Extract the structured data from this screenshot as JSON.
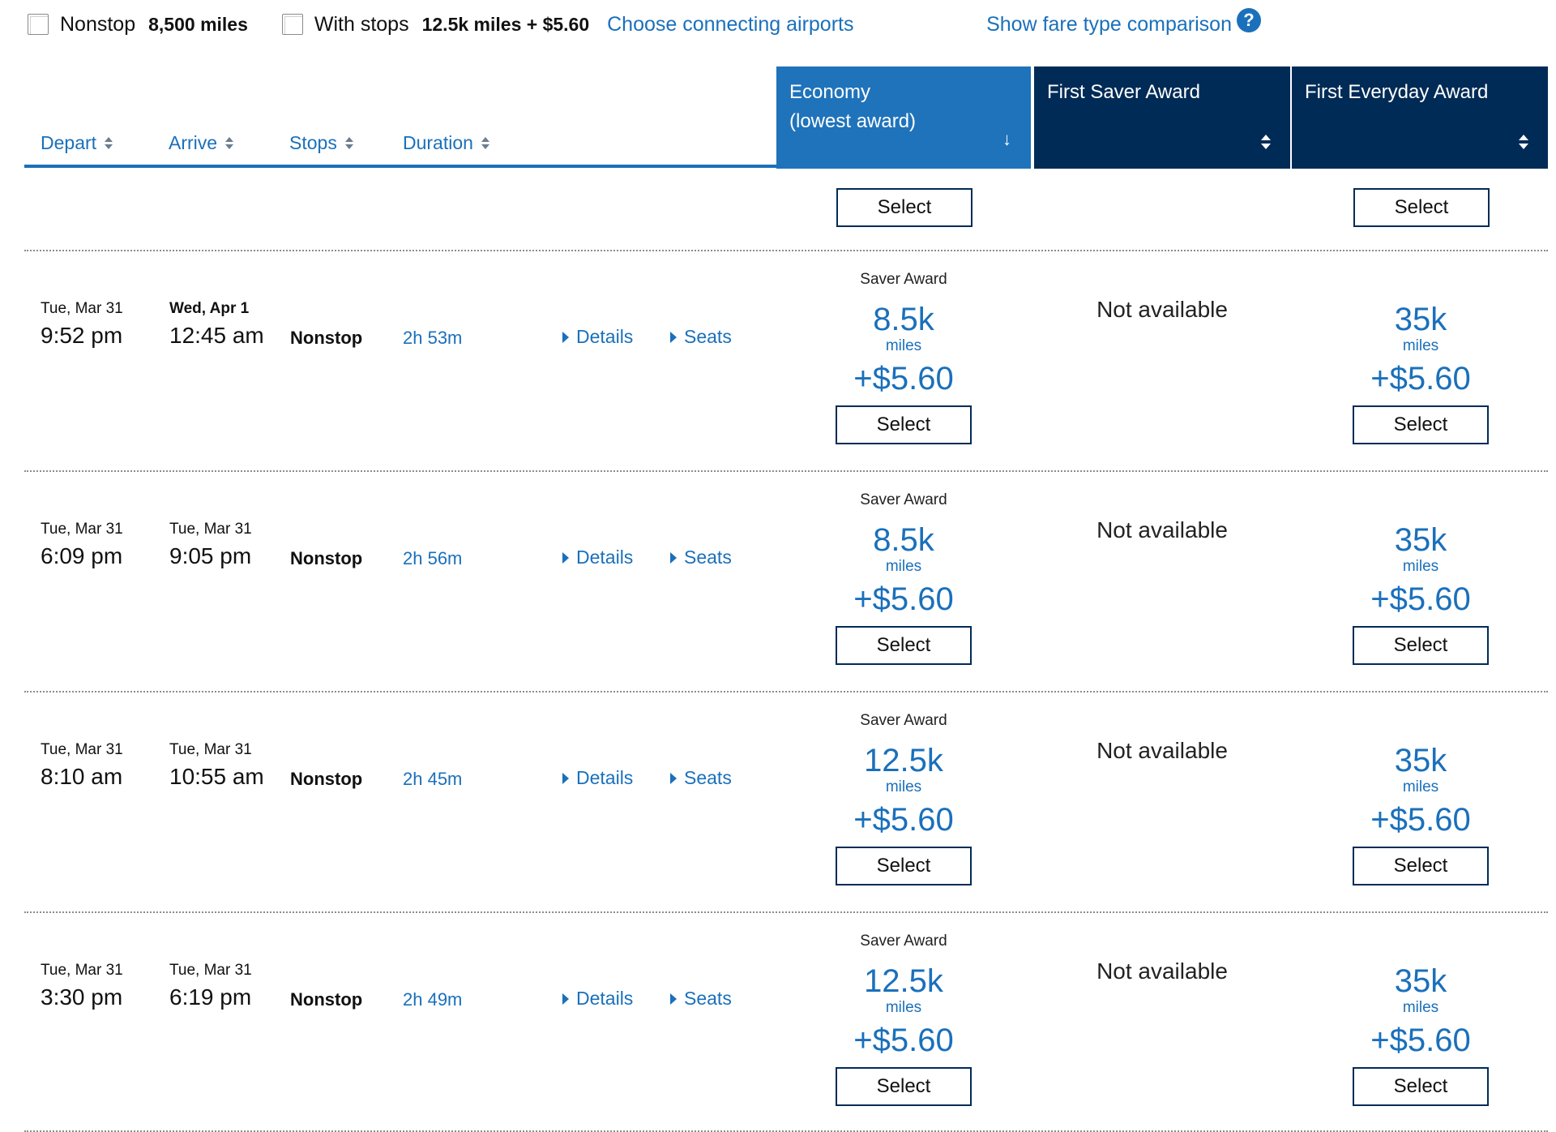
{
  "filters": {
    "nonstop_label": "Nonstop",
    "nonstop_price": "8,500 miles",
    "stops_label": "With stops",
    "stops_price": "12.5k miles + $5.60",
    "connecting_link": "Choose connecting airports",
    "compare_link": "Show fare type comparison",
    "help_glyph": "?"
  },
  "columns": {
    "depart": "Depart",
    "arrive": "Arrive",
    "stops": "Stops",
    "duration": "Duration"
  },
  "fare_columns": {
    "economy_line1": "Economy",
    "economy_line2": "(lowest award)",
    "economy_sort_glyph": "↓",
    "first_saver": "First Saver Award",
    "first_everyday": "First Everyday Award"
  },
  "select_label": "Select",
  "flights": [
    {
      "depart_date": "Tue, Mar 31",
      "depart_time": "9:52 pm",
      "arrive_date": "Wed, Apr 1",
      "arrive_time": "12:45 am",
      "stops": "Nonstop",
      "duration": "2h 53m",
      "details": "Details",
      "seats": "Seats",
      "economy": {
        "type": "Saver Award",
        "miles": "8.5k",
        "unit": "miles",
        "fee": "+$5.60"
      },
      "first_saver": "Not available",
      "first_everyday": {
        "miles": "35k",
        "unit": "miles",
        "fee": "+$5.60"
      }
    },
    {
      "depart_date": "Tue, Mar 31",
      "depart_time": "6:09 pm",
      "arrive_date": "Tue, Mar 31",
      "arrive_time": "9:05 pm",
      "stops": "Nonstop",
      "duration": "2h 56m",
      "details": "Details",
      "seats": "Seats",
      "economy": {
        "type": "Saver Award",
        "miles": "8.5k",
        "unit": "miles",
        "fee": "+$5.60"
      },
      "first_saver": "Not available",
      "first_everyday": {
        "miles": "35k",
        "unit": "miles",
        "fee": "+$5.60"
      }
    },
    {
      "depart_date": "Tue, Mar 31",
      "depart_time": "8:10 am",
      "arrive_date": "Tue, Mar 31",
      "arrive_time": "10:55 am",
      "stops": "Nonstop",
      "duration": "2h 45m",
      "details": "Details",
      "seats": "Seats",
      "economy": {
        "type": "Saver Award",
        "miles": "12.5k",
        "unit": "miles",
        "fee": "+$5.60"
      },
      "first_saver": "Not available",
      "first_everyday": {
        "miles": "35k",
        "unit": "miles",
        "fee": "+$5.60"
      }
    },
    {
      "depart_date": "Tue, Mar 31",
      "depart_time": "3:30 pm",
      "arrive_date": "Tue, Mar 31",
      "arrive_time": "6:19 pm",
      "stops": "Nonstop",
      "duration": "2h 49m",
      "details": "Details",
      "seats": "Seats",
      "economy": {
        "type": "Saver Award",
        "miles": "12.5k",
        "unit": "miles",
        "fee": "+$5.60"
      },
      "first_saver": "Not available",
      "first_everyday": {
        "miles": "35k",
        "unit": "miles",
        "fee": "+$5.60"
      }
    }
  ],
  "colors": {
    "link_blue": "#1a70bb",
    "economy_header": "#1f73bb",
    "first_header": "#002b56"
  }
}
